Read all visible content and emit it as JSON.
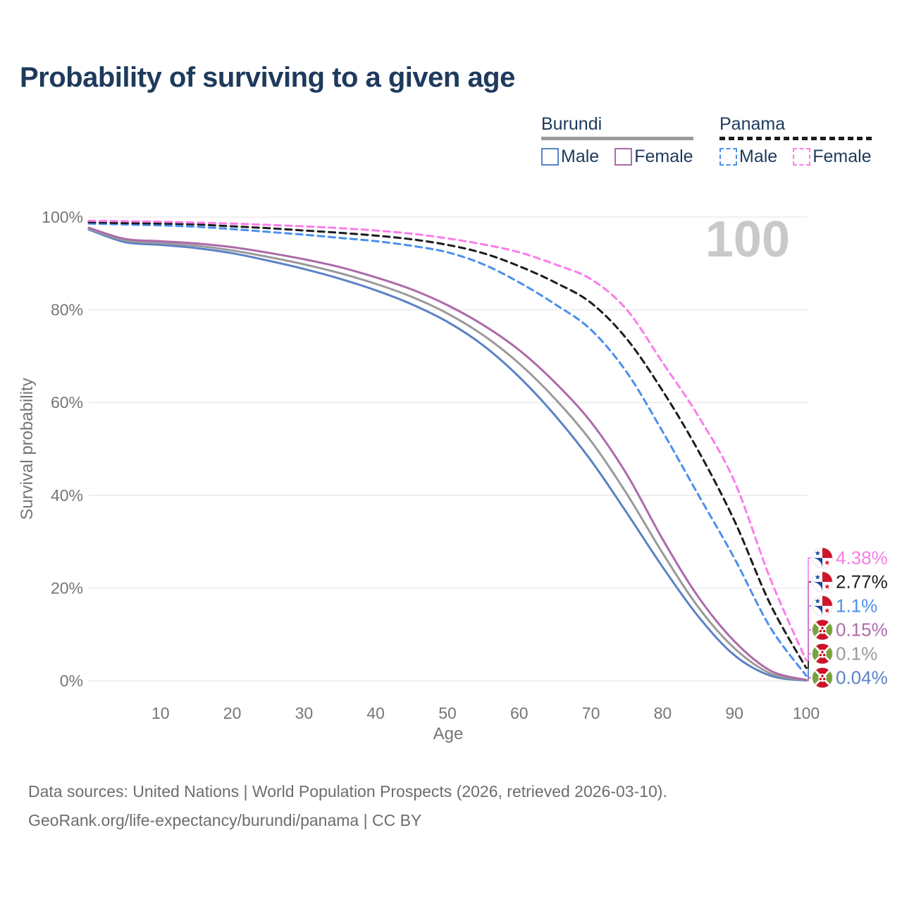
{
  "title": "Probability of surviving to a given age",
  "legend": {
    "groups": [
      {
        "label": "Burundi",
        "underline_style": "solid",
        "underline_color": "#9a9a9a",
        "items": [
          {
            "label": "Male",
            "color": "#5b82c6",
            "dashed": false
          },
          {
            "label": "Female",
            "color": "#ad6aaa",
            "dashed": false
          }
        ]
      },
      {
        "label": "Panama",
        "underline_style": "dashed",
        "underline_color": "#1c1c1c",
        "items": [
          {
            "label": "Male",
            "color": "#4a90ee",
            "dashed": true
          },
          {
            "label": "Female",
            "color": "#fa7de9",
            "dashed": true
          }
        ]
      }
    ]
  },
  "chart_data": {
    "type": "line",
    "title": "Probability of surviving to a given age",
    "xlabel": "Age",
    "ylabel": "Survival probability",
    "xlim": [
      0,
      100
    ],
    "ylim": [
      0,
      100
    ],
    "x_ticks": [
      10,
      20,
      30,
      40,
      50,
      60,
      70,
      80,
      90,
      100
    ],
    "y_ticks": [
      {
        "value": 0,
        "label": "0%"
      },
      {
        "value": 20,
        "label": "20%"
      },
      {
        "value": 40,
        "label": "40%"
      },
      {
        "value": 60,
        "label": "60%"
      },
      {
        "value": 80,
        "label": "80%"
      },
      {
        "value": 100,
        "label": "100%"
      }
    ],
    "grid": "horizontal",
    "legend_position": "top-right",
    "watermark": "100",
    "x": [
      0,
      5,
      10,
      15,
      20,
      25,
      30,
      35,
      40,
      45,
      50,
      55,
      60,
      65,
      70,
      75,
      80,
      85,
      90,
      95,
      100
    ],
    "series": [
      {
        "name": "Burundi Male",
        "country": "Burundi",
        "sex": "Male",
        "color": "#5b82c6",
        "dashed": false,
        "flag": "burundi",
        "values": [
          97.3,
          94.6,
          94.0,
          93.3,
          92.2,
          90.6,
          88.8,
          86.7,
          84.2,
          81.2,
          77.4,
          72.3,
          65.5,
          57.2,
          47.5,
          36.2,
          24.5,
          13.8,
          5.5,
          1.1,
          0.04
        ],
        "end_label": {
          "text": "0.04%",
          "color": "#5b82c6"
        }
      },
      {
        "name": "Burundi",
        "country": "Burundi",
        "sex": "Both",
        "color": "#9a9a9a",
        "dashed": false,
        "flag": "burundi",
        "values": [
          97.5,
          95.0,
          94.4,
          93.8,
          92.8,
          91.4,
          89.8,
          87.9,
          85.6,
          82.8,
          79.2,
          74.5,
          68.4,
          60.8,
          51.7,
          40.3,
          27.5,
          15.8,
          7.0,
          1.6,
          0.1
        ],
        "end_label": {
          "text": "0.1%",
          "color": "#9a9a9a"
        }
      },
      {
        "name": "Burundi Female",
        "country": "Burundi",
        "sex": "Female",
        "color": "#ad6aaa",
        "dashed": false,
        "flag": "burundi",
        "values": [
          97.7,
          95.3,
          94.8,
          94.3,
          93.5,
          92.3,
          90.9,
          89.2,
          87.0,
          84.4,
          81.0,
          76.7,
          71.3,
          64.3,
          55.8,
          44.5,
          30.5,
          18.0,
          8.5,
          2.2,
          0.15
        ],
        "end_label": {
          "text": "0.15%",
          "color": "#b06aab"
        }
      },
      {
        "name": "Panama Male",
        "country": "Panama",
        "sex": "Male",
        "color": "#4a90ee",
        "dashed": true,
        "flag": "panama",
        "values": [
          98.6,
          98.4,
          98.2,
          97.9,
          97.4,
          96.8,
          96.2,
          95.5,
          94.8,
          93.8,
          92.4,
          89.8,
          85.9,
          81.2,
          75.7,
          66.5,
          53.7,
          40.0,
          26.4,
          11.5,
          1.1
        ],
        "end_label": {
          "text": "1.1%",
          "color": "#4a90ee"
        }
      },
      {
        "name": "Panama",
        "country": "Panama",
        "sex": "Both",
        "color": "#1c1c1c",
        "dashed": true,
        "flag": "panama",
        "values": [
          98.9,
          98.7,
          98.6,
          98.4,
          98.0,
          97.6,
          97.1,
          96.6,
          96.0,
          95.2,
          94.0,
          92.2,
          89.4,
          85.9,
          81.5,
          73.7,
          62.5,
          49.5,
          34.5,
          16.5,
          2.77
        ],
        "end_label": {
          "text": "2.77%",
          "color": "#1c1c1c"
        }
      },
      {
        "name": "Panama Female",
        "country": "Panama",
        "sex": "Female",
        "color": "#fa7de9",
        "dashed": true,
        "flag": "panama",
        "values": [
          99.2,
          99.1,
          99.0,
          98.8,
          98.6,
          98.3,
          98.0,
          97.6,
          97.1,
          96.4,
          95.4,
          94.1,
          92.4,
          89.8,
          86.6,
          80.0,
          68.6,
          57.0,
          43.0,
          22.0,
          4.38
        ],
        "end_label": {
          "text": "4.38%",
          "color": "#f97de8"
        }
      }
    ]
  },
  "footer": {
    "line1": "Data sources: United Nations | World Population Prospects (2026, retrieved 2026-03-10).",
    "line2": "GeoRank.org/life-expectancy/burundi/panama | CC BY"
  }
}
